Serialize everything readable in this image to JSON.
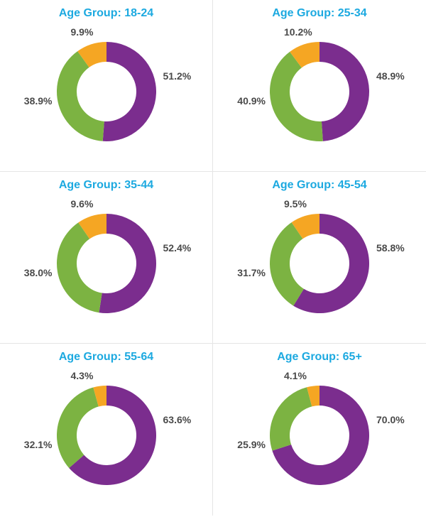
{
  "title_color": "#1ca9e0",
  "label_color": "#4a4a4a",
  "title_fontsize": 16,
  "label_fontsize": 14,
  "grid_border_color": "#e5e5e5",
  "background_color": "#ffffff",
  "donut": {
    "outer_radius": 70,
    "inner_radius": 42,
    "start_angle_deg": 0
  },
  "slice_colors": {
    "purple": "#7b2d8e",
    "green": "#7cb342",
    "orange": "#f5a623"
  },
  "panels": [
    {
      "title": "Age Group: 18-24",
      "slices": [
        {
          "label": "51.2%",
          "value": 51.2,
          "color_key": "purple",
          "label_pos": "right"
        },
        {
          "label": "38.9%",
          "value": 38.9,
          "color_key": "green",
          "label_pos": "left"
        },
        {
          "label": "9.9%",
          "value": 9.9,
          "color_key": "orange",
          "label_pos": "top"
        }
      ]
    },
    {
      "title": "Age Group: 25-34",
      "slices": [
        {
          "label": "48.9%",
          "value": 48.9,
          "color_key": "purple",
          "label_pos": "right"
        },
        {
          "label": "40.9%",
          "value": 40.9,
          "color_key": "green",
          "label_pos": "left"
        },
        {
          "label": "10.2%",
          "value": 10.2,
          "color_key": "orange",
          "label_pos": "top"
        }
      ]
    },
    {
      "title": "Age Group: 35-44",
      "slices": [
        {
          "label": "52.4%",
          "value": 52.4,
          "color_key": "purple",
          "label_pos": "right"
        },
        {
          "label": "38.0%",
          "value": 38.0,
          "color_key": "green",
          "label_pos": "left"
        },
        {
          "label": "9.6%",
          "value": 9.6,
          "color_key": "orange",
          "label_pos": "top"
        }
      ]
    },
    {
      "title": "Age Group: 45-54",
      "slices": [
        {
          "label": "58.8%",
          "value": 58.8,
          "color_key": "purple",
          "label_pos": "right"
        },
        {
          "label": "31.7%",
          "value": 31.7,
          "color_key": "green",
          "label_pos": "left"
        },
        {
          "label": "9.5%",
          "value": 9.5,
          "color_key": "orange",
          "label_pos": "top"
        }
      ]
    },
    {
      "title": "Age Group: 55-64",
      "slices": [
        {
          "label": "63.6%",
          "value": 63.6,
          "color_key": "purple",
          "label_pos": "right"
        },
        {
          "label": "32.1%",
          "value": 32.1,
          "color_key": "green",
          "label_pos": "left"
        },
        {
          "label": "4.3%",
          "value": 4.3,
          "color_key": "orange",
          "label_pos": "top"
        }
      ]
    },
    {
      "title": "Age Group: 65+",
      "slices": [
        {
          "label": "70.0%",
          "value": 70.0,
          "color_key": "purple",
          "label_pos": "right"
        },
        {
          "label": "25.9%",
          "value": 25.9,
          "color_key": "green",
          "label_pos": "left"
        },
        {
          "label": "4.1%",
          "value": 4.1,
          "color_key": "orange",
          "label_pos": "top"
        }
      ]
    }
  ]
}
